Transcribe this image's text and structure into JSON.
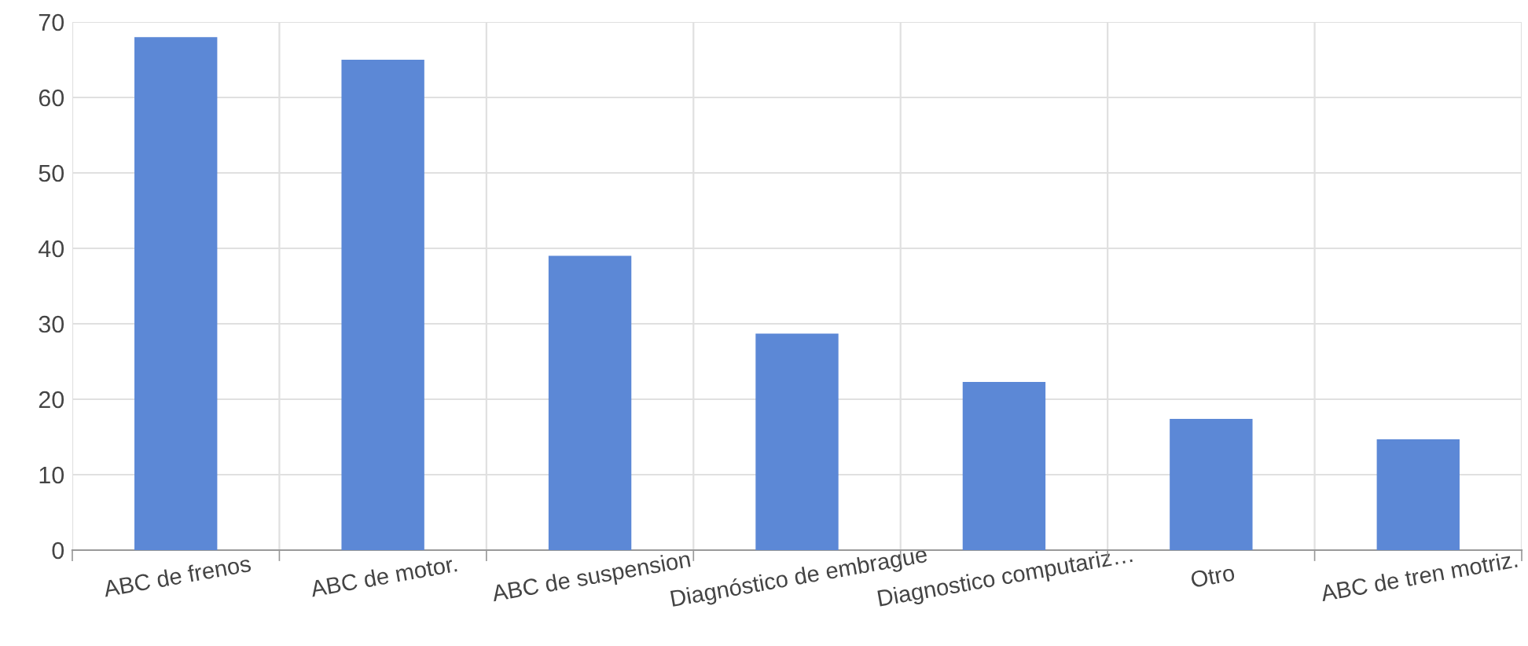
{
  "chart_data": {
    "type": "bar",
    "categories": [
      "ABC de frenos",
      "ABC de motor.",
      "ABC de suspension",
      "Diagnóstico de embrague",
      "Diagnostico computariz…",
      "Otro",
      "ABC de tren motriz."
    ],
    "values": [
      68,
      65,
      39,
      28.7,
      22.3,
      17.4,
      14.7
    ],
    "color": "#5c88d6",
    "ylim": [
      0,
      70
    ],
    "yticks": [
      0,
      10,
      20,
      30,
      40,
      50,
      60,
      70
    ],
    "grid": true
  }
}
